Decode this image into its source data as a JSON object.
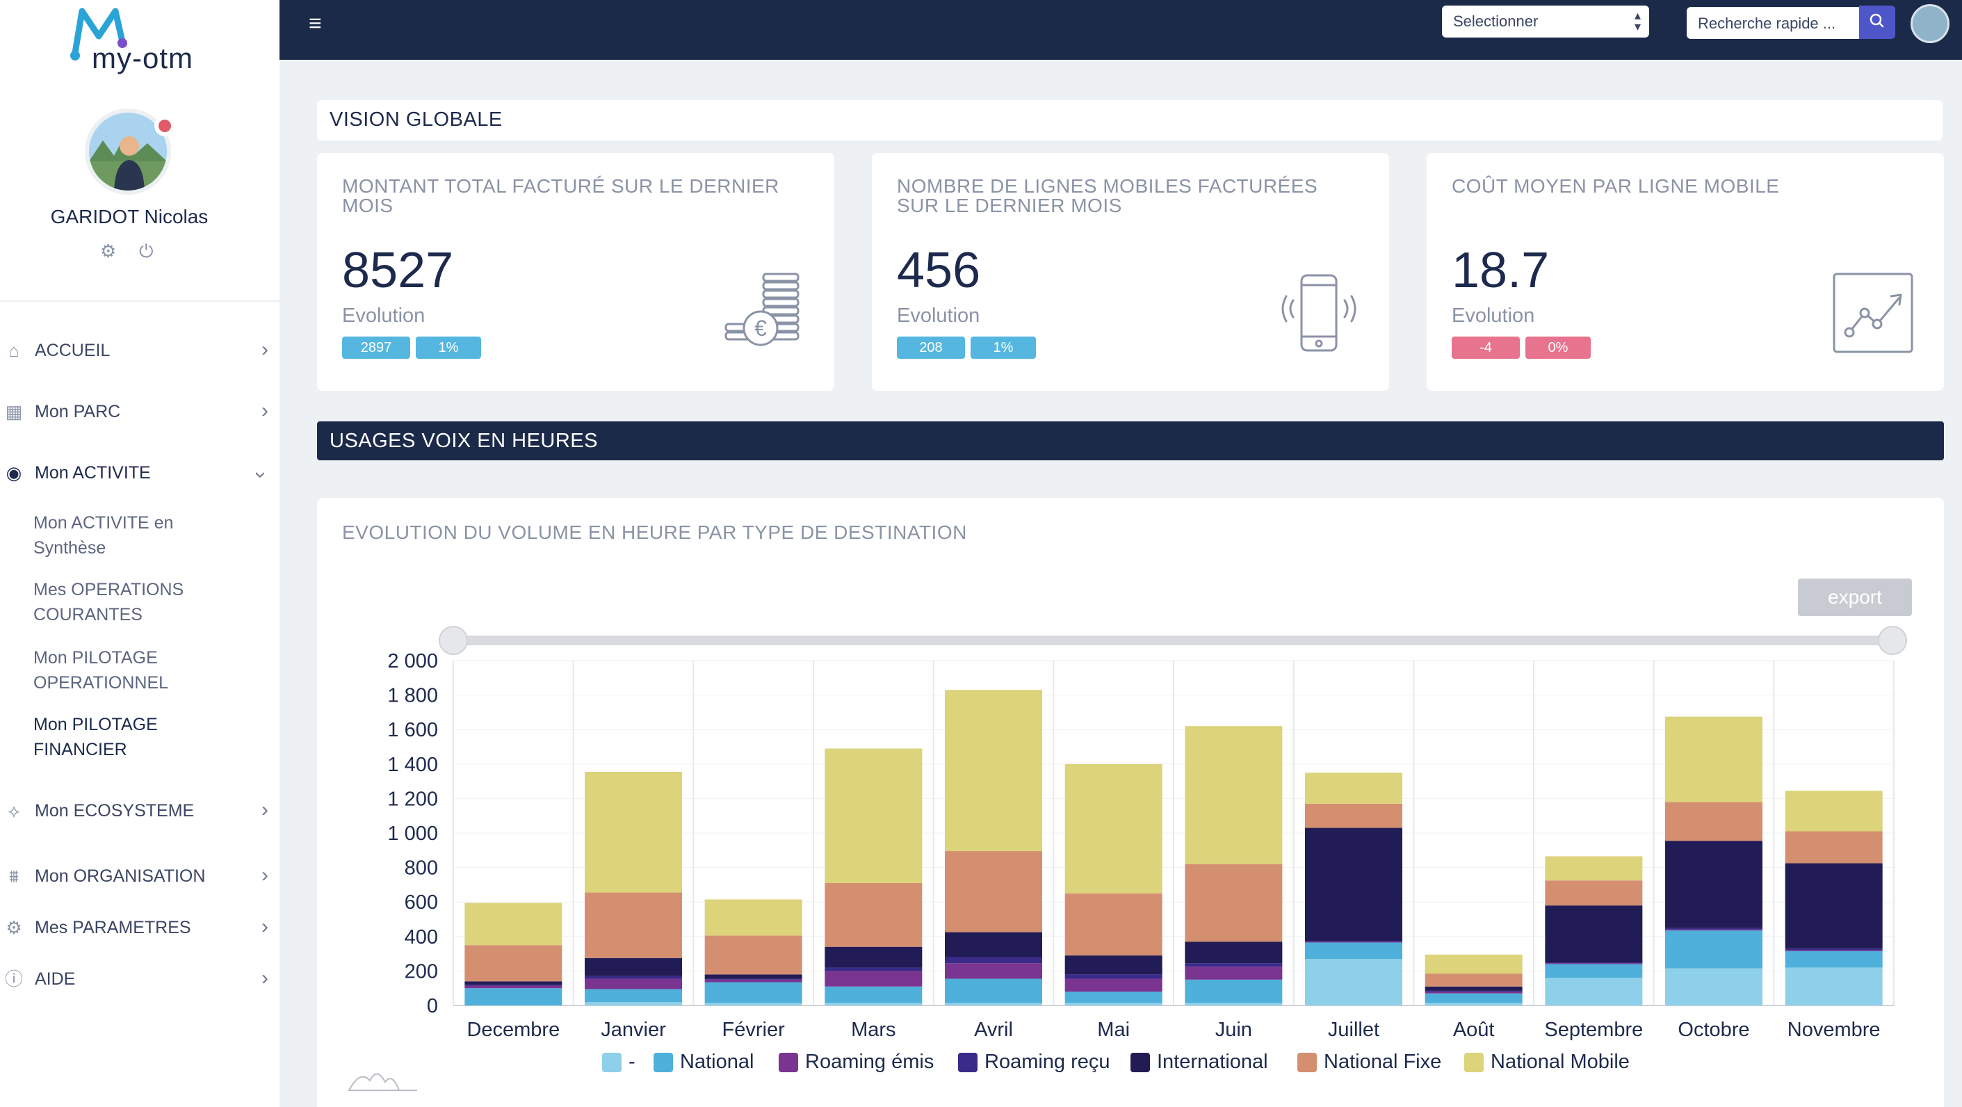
{
  "sidebar": {
    "logo_text": "my-otm",
    "user_name": "GARIDOT Nicolas",
    "nav": [
      {
        "label": "ACCUEIL",
        "icon": "home-icon"
      },
      {
        "label": "Mon PARC",
        "icon": "grid-icon"
      },
      {
        "label": "Mon ACTIVITE",
        "icon": "activity-icon"
      },
      {
        "label": "Mon ECOSYSTEME",
        "icon": "network-icon"
      },
      {
        "label": "Mon ORGANISATION",
        "icon": "organization-icon"
      },
      {
        "label": "Mes PARAMETRES",
        "icon": "settings-icon"
      },
      {
        "label": "AIDE",
        "icon": "help-icon"
      }
    ],
    "subnav": [
      {
        "label": "Mon ACTIVITE en Synthèse"
      },
      {
        "label": "Mes OPERATIONS COURANTES"
      },
      {
        "label": "Mon PILOTAGE OPERATIONNEL"
      },
      {
        "label": "Mon PILOTAGE FINANCIER"
      }
    ]
  },
  "topbar": {
    "select_value": "Selectionner",
    "search_placeholder": "Recherche rapide ..."
  },
  "vision": {
    "title": "VISION GLOBALE",
    "kpis": [
      {
        "title": "MONTANT TOTAL FACTURÉ SUR LE DERNIER MOIS",
        "value": "8527",
        "evolution_label": "Evolution",
        "delta": "2897",
        "pct": "1%",
        "badge_color": "#55b7e0",
        "icon": "coins-euro-icon"
      },
      {
        "title": "NOMBRE DE LIGNES MOBILES FACTURÉES SUR LE DERNIER MOIS",
        "value": "456",
        "evolution_label": "Evolution",
        "delta": "208",
        "pct": "1%",
        "badge_color": "#55b7e0",
        "icon": "mobile-phone-icon"
      },
      {
        "title": "COÛT MOYEN PAR LIGNE MOBILE",
        "value": "18.7",
        "evolution_label": "Evolution",
        "delta": "-4",
        "pct": "0%",
        "badge_color": "#e8738e",
        "icon": "trend-chart-icon"
      }
    ]
  },
  "usages": {
    "section_title": "USAGES VOIX EN HEURES",
    "chart_title": "EVOLUTION DU VOLUME EN HEURE PAR TYPE DE DESTINATION",
    "export_label": "export"
  },
  "chart_data": {
    "type": "bar",
    "stacked": true,
    "categories": [
      "Decembre",
      "Janvier",
      "Février",
      "Mars",
      "Avril",
      "Mai",
      "Juin",
      "Juillet",
      "Août",
      "Septembre",
      "Octobre",
      "Novembre"
    ],
    "ylim": [
      0,
      2000
    ],
    "yticks": [
      "0",
      "200",
      "400",
      "600",
      "800",
      "1 000",
      "1 200",
      "1 400",
      "1 600",
      "1 800",
      "2 000"
    ],
    "grid": true,
    "legend_position": "bottom",
    "series": [
      {
        "name": "-",
        "color": "#8ecfea",
        "values": [
          0,
          20,
          15,
          15,
          15,
          15,
          15,
          270,
          15,
          160,
          215,
          220
        ]
      },
      {
        "name": "National",
        "color": "#4fb0db",
        "values": [
          100,
          75,
          120,
          95,
          140,
          65,
          135,
          95,
          55,
          80,
          220,
          95
        ]
      },
      {
        "name": "Roaming émis",
        "color": "#7a3590",
        "values": [
          15,
          60,
          15,
          90,
          90,
          75,
          75,
          5,
          10,
          5,
          5,
          5
        ]
      },
      {
        "name": "Roaming reçu",
        "color": "#3a2a8a",
        "values": [
          5,
          15,
          5,
          20,
          35,
          25,
          20,
          5,
          5,
          5,
          10,
          10
        ]
      },
      {
        "name": "International",
        "color": "#221c56",
        "values": [
          20,
          105,
          25,
          120,
          145,
          110,
          125,
          655,
          25,
          330,
          505,
          495
        ]
      },
      {
        "name": "National Fixe",
        "color": "#d48f70",
        "values": [
          210,
          380,
          225,
          370,
          470,
          360,
          450,
          140,
          75,
          145,
          225,
          185
        ]
      },
      {
        "name": "National Mobile",
        "color": "#dcd37a",
        "values": [
          245,
          700,
          210,
          780,
          935,
          750,
          800,
          180,
          110,
          140,
          495,
          235
        ]
      }
    ]
  }
}
